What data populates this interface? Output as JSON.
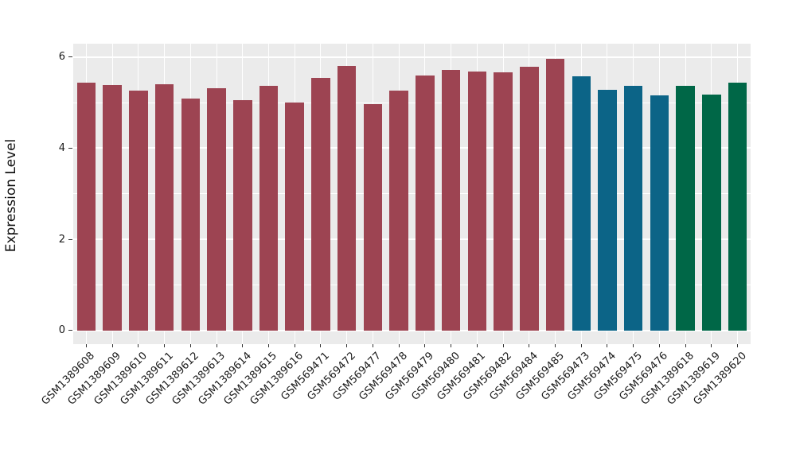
{
  "chart_data": {
    "type": "bar",
    "title": "",
    "xlabel": "",
    "ylabel": "Expression Level",
    "categories": [
      "GSM1389608",
      "GSM1389609",
      "GSM1389610",
      "GSM1389611",
      "GSM1389612",
      "GSM1389613",
      "GSM1389614",
      "GSM1389615",
      "GSM1389616",
      "GSM569471",
      "GSM569472",
      "GSM569477",
      "GSM569478",
      "GSM569479",
      "GSM569480",
      "GSM569481",
      "GSM569482",
      "GSM569484",
      "GSM569485",
      "GSM569473",
      "GSM569474",
      "GSM569475",
      "GSM569476",
      "GSM1389618",
      "GSM1389619",
      "GSM1389620"
    ],
    "values": [
      5.44,
      5.38,
      5.26,
      5.4,
      5.08,
      5.31,
      5.06,
      5.37,
      5.0,
      5.55,
      5.81,
      4.97,
      5.26,
      5.6,
      5.71,
      5.68,
      5.66,
      5.78,
      5.96,
      5.58,
      5.28,
      5.37,
      5.15,
      5.37,
      5.18,
      5.43
    ],
    "bar_colors": [
      "#9d4452",
      "#9d4452",
      "#9d4452",
      "#9d4452",
      "#9d4452",
      "#9d4452",
      "#9d4452",
      "#9d4452",
      "#9d4452",
      "#9d4452",
      "#9d4452",
      "#9d4452",
      "#9d4452",
      "#9d4452",
      "#9d4452",
      "#9d4452",
      "#9d4452",
      "#9d4452",
      "#9d4452",
      "#0c6487",
      "#0c6487",
      "#0c6487",
      "#0c6487",
      "#006747",
      "#006747",
      "#006747"
    ],
    "color_groups": [
      {
        "color": "#9d4452",
        "samples": [
          "GSM1389608",
          "GSM1389609",
          "GSM1389610",
          "GSM1389611",
          "GSM1389612",
          "GSM1389613",
          "GSM1389614",
          "GSM1389615",
          "GSM1389616",
          "GSM569471",
          "GSM569472",
          "GSM569477",
          "GSM569478",
          "GSM569479",
          "GSM569480",
          "GSM569481",
          "GSM569482",
          "GSM569484",
          "GSM569485"
        ]
      },
      {
        "color": "#0c6487",
        "samples": [
          "GSM569473",
          "GSM569474",
          "GSM569475",
          "GSM569476"
        ]
      },
      {
        "color": "#006747",
        "samples": [
          "GSM1389618",
          "GSM1389619",
          "GSM1389620"
        ]
      }
    ],
    "yticks": [
      0,
      2,
      4,
      6
    ],
    "yticks_minor": [
      1,
      3,
      5
    ],
    "ylim": [
      -0.3,
      6.3
    ],
    "grid": true,
    "legend": "none",
    "panel_background": "#ebebeb",
    "grid_color": "#ffffff",
    "axis_text_color": "#1a1a1a",
    "tick_mark_color": "#333333"
  }
}
